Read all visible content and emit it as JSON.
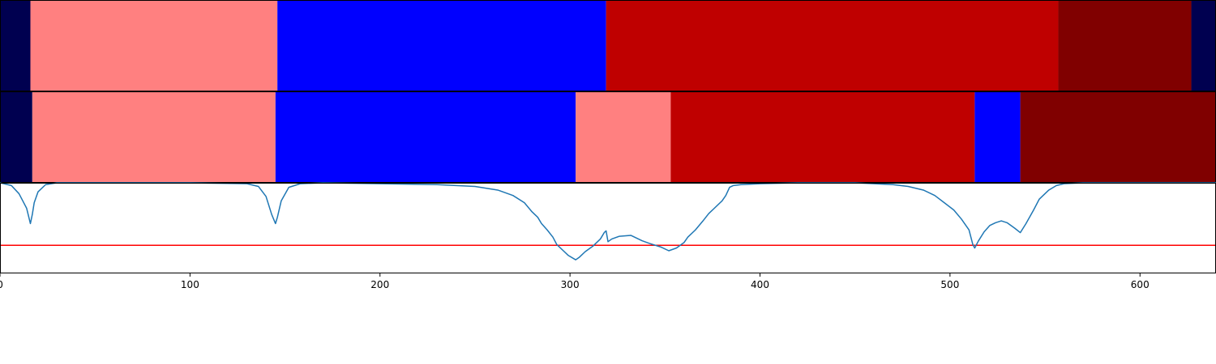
{
  "colors": {
    "background": "#ffffff",
    "axis": "#000000",
    "signal": "#1f77b4",
    "threshold": "#ff0000"
  },
  "chart_data": [
    {
      "type": "bar",
      "orientation": "horizontal-segments",
      "xlim": [
        0,
        640
      ],
      "segments": [
        {
          "start": 0,
          "end": 16,
          "color": "#000050"
        },
        {
          "start": 16,
          "end": 146,
          "color": "#ff8080"
        },
        {
          "start": 146,
          "end": 319,
          "color": "#0000ff"
        },
        {
          "start": 319,
          "end": 557,
          "color": "#bf0000"
        },
        {
          "start": 557,
          "end": 627,
          "color": "#800000"
        },
        {
          "start": 627,
          "end": 640,
          "color": "#000050"
        }
      ]
    },
    {
      "type": "bar",
      "orientation": "horizontal-segments",
      "xlim": [
        0,
        640
      ],
      "segments": [
        {
          "start": 0,
          "end": 17,
          "color": "#000050"
        },
        {
          "start": 17,
          "end": 145,
          "color": "#ff8080"
        },
        {
          "start": 145,
          "end": 303,
          "color": "#0000ff"
        },
        {
          "start": 303,
          "end": 353,
          "color": "#ff8080"
        },
        {
          "start": 353,
          "end": 513,
          "color": "#bf0000"
        },
        {
          "start": 513,
          "end": 537,
          "color": "#0000ff"
        },
        {
          "start": 537,
          "end": 640,
          "color": "#800000"
        }
      ]
    },
    {
      "type": "line",
      "xlim": [
        0,
        640
      ],
      "ylim": [
        0,
        1
      ],
      "xticks": [
        0,
        100,
        200,
        300,
        400,
        500,
        600
      ],
      "xtick_labels": [
        "0",
        "100",
        "200",
        "300",
        "400",
        "500",
        "600"
      ],
      "threshold": 0.31,
      "series": [
        {
          "x": [
            0,
            6,
            10,
            14,
            16,
            17,
            18,
            20,
            24,
            30,
            40,
            60,
            100,
            130,
            136,
            140,
            143,
            145,
            146,
            148,
            152,
            158,
            170,
            200,
            230,
            250,
            262,
            270,
            276,
            280,
            283,
            285,
            288,
            291,
            293,
            296,
            299,
            303,
            305,
            308,
            312,
            316,
            318,
            319,
            320,
            322,
            326,
            332,
            338,
            342,
            348,
            352,
            356,
            360,
            362,
            366,
            370,
            373,
            376,
            380,
            382,
            384,
            386,
            390,
            400,
            420,
            450,
            470,
            478,
            486,
            492,
            497,
            502,
            506,
            510,
            512,
            513,
            515,
            518,
            521,
            524,
            527,
            530,
            534,
            537,
            540,
            544,
            547,
            552,
            556,
            560,
            570,
            600,
            640
          ],
          "y": [
            1.0,
            0.97,
            0.88,
            0.72,
            0.55,
            0.65,
            0.78,
            0.9,
            0.98,
            1.0,
            1.0,
            1.0,
            1.0,
            0.99,
            0.96,
            0.85,
            0.65,
            0.55,
            0.62,
            0.8,
            0.95,
            0.99,
            1.0,
            0.99,
            0.98,
            0.96,
            0.92,
            0.86,
            0.78,
            0.68,
            0.62,
            0.55,
            0.48,
            0.4,
            0.32,
            0.26,
            0.2,
            0.15,
            0.18,
            0.24,
            0.3,
            0.38,
            0.45,
            0.47,
            0.35,
            0.38,
            0.41,
            0.42,
            0.36,
            0.33,
            0.29,
            0.25,
            0.28,
            0.34,
            0.4,
            0.48,
            0.58,
            0.66,
            0.72,
            0.8,
            0.86,
            0.95,
            0.97,
            0.98,
            0.99,
            1.0,
            1.0,
            0.98,
            0.96,
            0.92,
            0.86,
            0.78,
            0.7,
            0.6,
            0.48,
            0.32,
            0.28,
            0.36,
            0.46,
            0.53,
            0.56,
            0.58,
            0.56,
            0.5,
            0.45,
            0.55,
            0.7,
            0.82,
            0.92,
            0.97,
            0.99,
            1.0,
            1.0,
            1.0
          ]
        }
      ]
    }
  ]
}
